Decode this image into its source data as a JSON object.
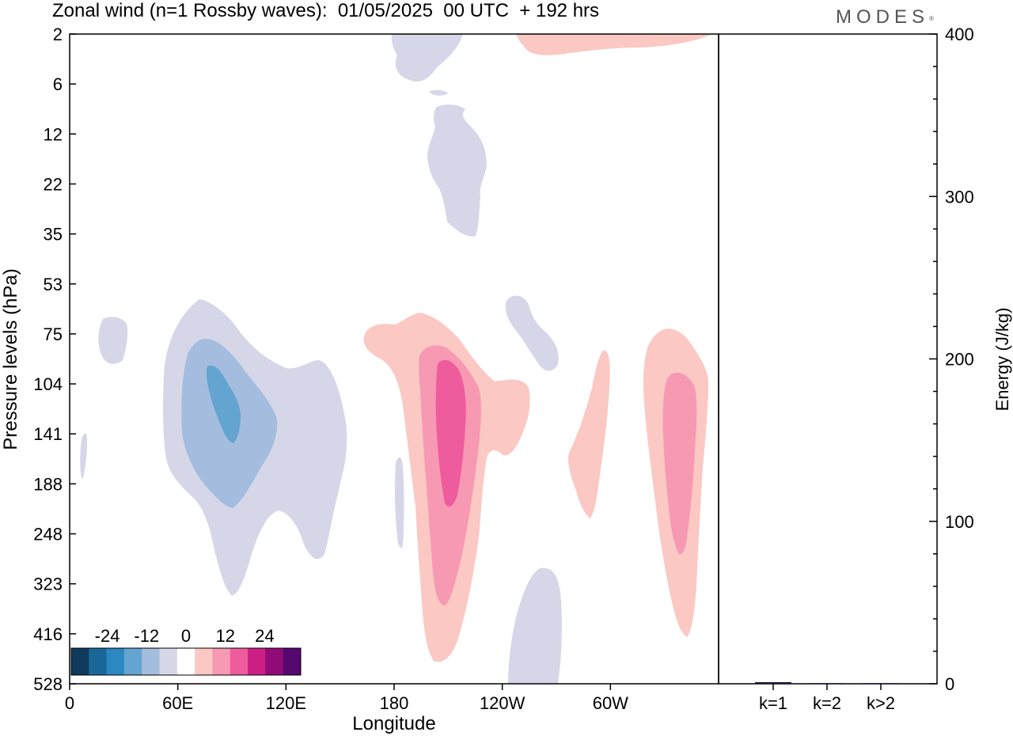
{
  "header": {
    "title": "Zonal wind (n=1 Rossby waves):  01/05/2025  00 UTC  + 192 hrs",
    "brand": "MODES"
  },
  "chart_data": [
    {
      "type": "heatmap",
      "title": "Zonal wind (n=1 Rossby waves):  01/05/2025  00 UTC  + 192 hrs",
      "xlabel": "Longitude",
      "ylabel": "Pressure levels (hPa)",
      "x_ticks": [
        "0",
        "60E",
        "120E",
        "180",
        "120W",
        "60W"
      ],
      "x_tick_degrees": [
        0,
        60,
        120,
        180,
        240,
        300
      ],
      "xlim": [
        0,
        360
      ],
      "y_ticks": [
        "2",
        "6",
        "12",
        "22",
        "35",
        "53",
        "75",
        "104",
        "141",
        "188",
        "248",
        "323",
        "416",
        "528"
      ],
      "y_scale": "pressure levels (categorical, top = 2 hPa, bottom = 528 hPa)",
      "colorbar": {
        "labels": [
          "-24",
          "-12",
          "0",
          "12",
          "24"
        ],
        "label_values": [
          -24,
          -12,
          0,
          12,
          24
        ],
        "levels": [
          -30,
          -25,
          -20,
          -15,
          -10,
          -5,
          5,
          10,
          15,
          20,
          25,
          30
        ],
        "colors": [
          "#0f3a5c",
          "#1a6799",
          "#2b88c0",
          "#64a4d0",
          "#a4bcdd",
          "#d5d7e9",
          "#ffffff",
          "#fbc8c3",
          "#f799b3",
          "#ef5c9d",
          "#cb1f86",
          "#930b78",
          "#540870"
        ]
      },
      "regions": [
        {
          "sign": "negative",
          "level": -5,
          "center": [
            14,
            85
          ],
          "note": "small easterly patch near 0-25E, 75-100 hPa"
        },
        {
          "sign": "negative",
          "level": -5,
          "center": [
            10,
            150
          ],
          "note": "thin sliver near 5E"
        },
        {
          "sign": "negative",
          "level": -5,
          "center": [
            95,
            150
          ]
        },
        {
          "sign": "negative",
          "level": -10,
          "center": [
            88,
            125
          ]
        },
        {
          "sign": "negative",
          "level": -15,
          "center": [
            85,
            125
          ]
        },
        {
          "sign": "negative",
          "level": -5,
          "center": [
            200,
            15
          ],
          "note": "upper stratosphere tongue 2-40 hPa"
        },
        {
          "sign": "negative",
          "level": -5,
          "center": [
            238,
            80
          ]
        },
        {
          "sign": "negative",
          "level": -5,
          "center": [
            182,
            200
          ]
        },
        {
          "sign": "negative",
          "level": -5,
          "center": [
            240,
            450
          ]
        },
        {
          "sign": "positive",
          "level": 5,
          "center": [
            260,
            2
          ]
        },
        {
          "sign": "positive",
          "level": 5,
          "center": [
            205,
            160
          ]
        },
        {
          "sign": "positive",
          "level": 10,
          "center": [
            210,
            170
          ]
        },
        {
          "sign": "positive",
          "level": 15,
          "center": [
            210,
            130
          ]
        },
        {
          "sign": "positive",
          "level": 5,
          "center": [
            290,
            170
          ]
        },
        {
          "sign": "positive",
          "level": 5,
          "center": [
            325,
            200
          ]
        },
        {
          "sign": "positive",
          "level": 10,
          "center": [
            327,
            170
          ]
        }
      ]
    },
    {
      "type": "bar",
      "ylabel": "Energy (J/kg)",
      "categories": [
        "k=1",
        "k=2",
        "k>2"
      ],
      "values": [
        1,
        0,
        0
      ],
      "ylim": [
        0,
        400
      ],
      "y_ticks": [
        0,
        100,
        200,
        300,
        400
      ]
    }
  ],
  "colors": {
    "frame": "#000000",
    "bar": "#1a1a3a"
  }
}
